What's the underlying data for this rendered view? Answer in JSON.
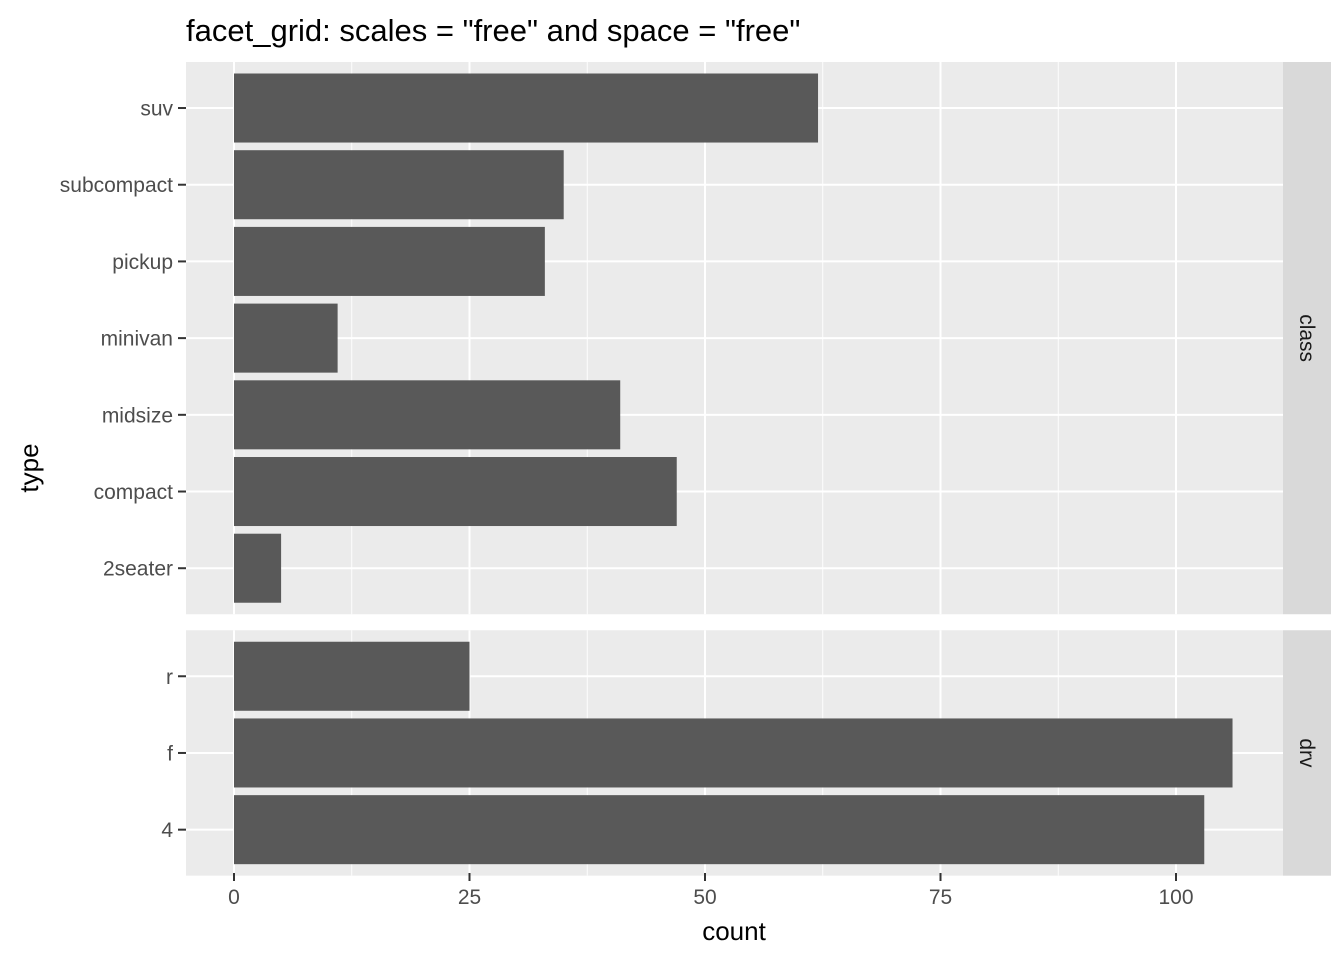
{
  "chart_data": {
    "type": "bar",
    "orientation": "horizontal",
    "title": "facet_grid: scales = \"free\" and space = \"free\"",
    "xlabel": "count",
    "ylabel": "type",
    "xlim": [
      0,
      111
    ],
    "x_ticks": [
      0,
      25,
      50,
      75,
      100
    ],
    "x_tick_labels": [
      "0",
      "25",
      "50",
      "75",
      "100"
    ],
    "grid": true,
    "colors": {
      "bar": "#595959",
      "panel": "#ebebeb",
      "grid": "#ffffff",
      "strip": "#d9d9d9",
      "tick_text": "#4d4d4d"
    },
    "facets": [
      {
        "label": "class",
        "categories": [
          "2seater",
          "compact",
          "midsize",
          "minivan",
          "pickup",
          "subcompact",
          "suv"
        ],
        "values": [
          5,
          47,
          41,
          11,
          33,
          35,
          62
        ]
      },
      {
        "label": "drv",
        "categories": [
          "4",
          "f",
          "r"
        ],
        "values": [
          103,
          106,
          25
        ]
      }
    ]
  }
}
